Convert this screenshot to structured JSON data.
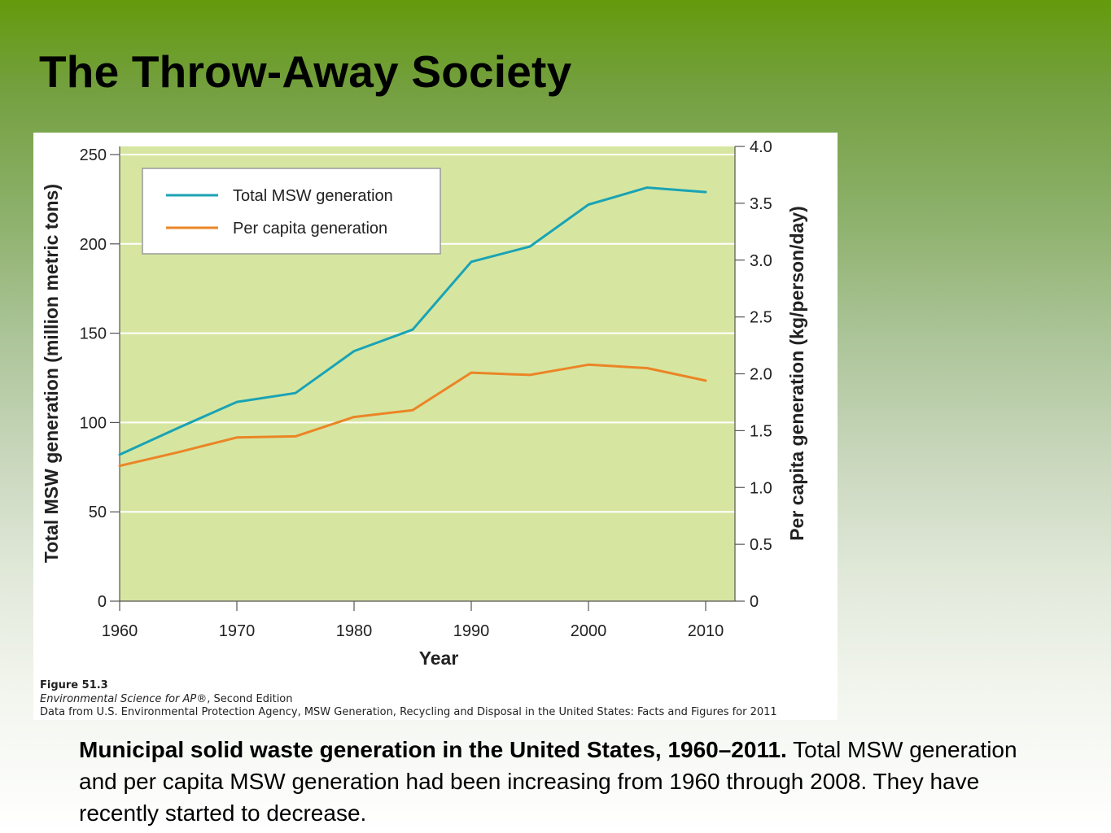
{
  "slide": {
    "title": "The Throw-Away Society"
  },
  "figure": {
    "number": "Figure 51.3",
    "book_title": "Environmental Science for AP®",
    "book_edition": ", Second Edition",
    "source": "Data from U.S. Environmental Protection Agency, MSW Generation, Recycling and Disposal in the United States: Facts and Figures for 2011"
  },
  "caption": {
    "bold": "Municipal solid waste generation in the United States, 1960–2011.",
    "text": " Total MSW generation and per capita MSW generation had been increasing from 1960 through 2008. They have recently started to decrease."
  },
  "colors": {
    "plot_background": "#d6e6a0",
    "gridline": "#ffffff",
    "axis": "#555555",
    "total_series": "#1aa3b5",
    "per_capita_series": "#eb8526"
  },
  "chart_data": {
    "type": "line",
    "title": "",
    "xlabel": "Year",
    "ylabel_left": "Total MSW generation (million metric tons)",
    "ylabel_right": "Per capita generation (kg/person/day)",
    "xlim": [
      1960,
      2012.5
    ],
    "ylim_left": [
      0,
      250
    ],
    "ylim_right": [
      0,
      4.0
    ],
    "x_ticks": [
      1960,
      1970,
      1980,
      1990,
      2000,
      2010
    ],
    "y_left_ticks": [
      0,
      50,
      100,
      150,
      200,
      250
    ],
    "y_right_ticks": [
      "0",
      "0.5",
      "1.0",
      "1.5",
      "2.0",
      "2.5",
      "3.0",
      "3.5",
      "4.0"
    ],
    "grid": true,
    "legend_position": "top-left",
    "series": [
      {
        "name": "Total MSW generation",
        "axis": "left",
        "color": "#1aa3b5",
        "x": [
          1960,
          1965,
          1970,
          1975,
          1980,
          1985,
          1990,
          1995,
          2000,
          2005,
          2010
        ],
        "values": [
          82,
          97,
          111.5,
          116.5,
          140,
          152,
          190,
          198.5,
          222,
          231.5,
          229
        ]
      },
      {
        "name": "Per capita generation",
        "axis": "right",
        "color": "#eb8526",
        "x": [
          1960,
          1965,
          1970,
          1975,
          1980,
          1985,
          1990,
          1995,
          2000,
          2005,
          2010
        ],
        "values": [
          1.19,
          1.31,
          1.44,
          1.45,
          1.62,
          1.68,
          2.01,
          1.99,
          2.08,
          2.05,
          1.94
        ]
      }
    ]
  }
}
